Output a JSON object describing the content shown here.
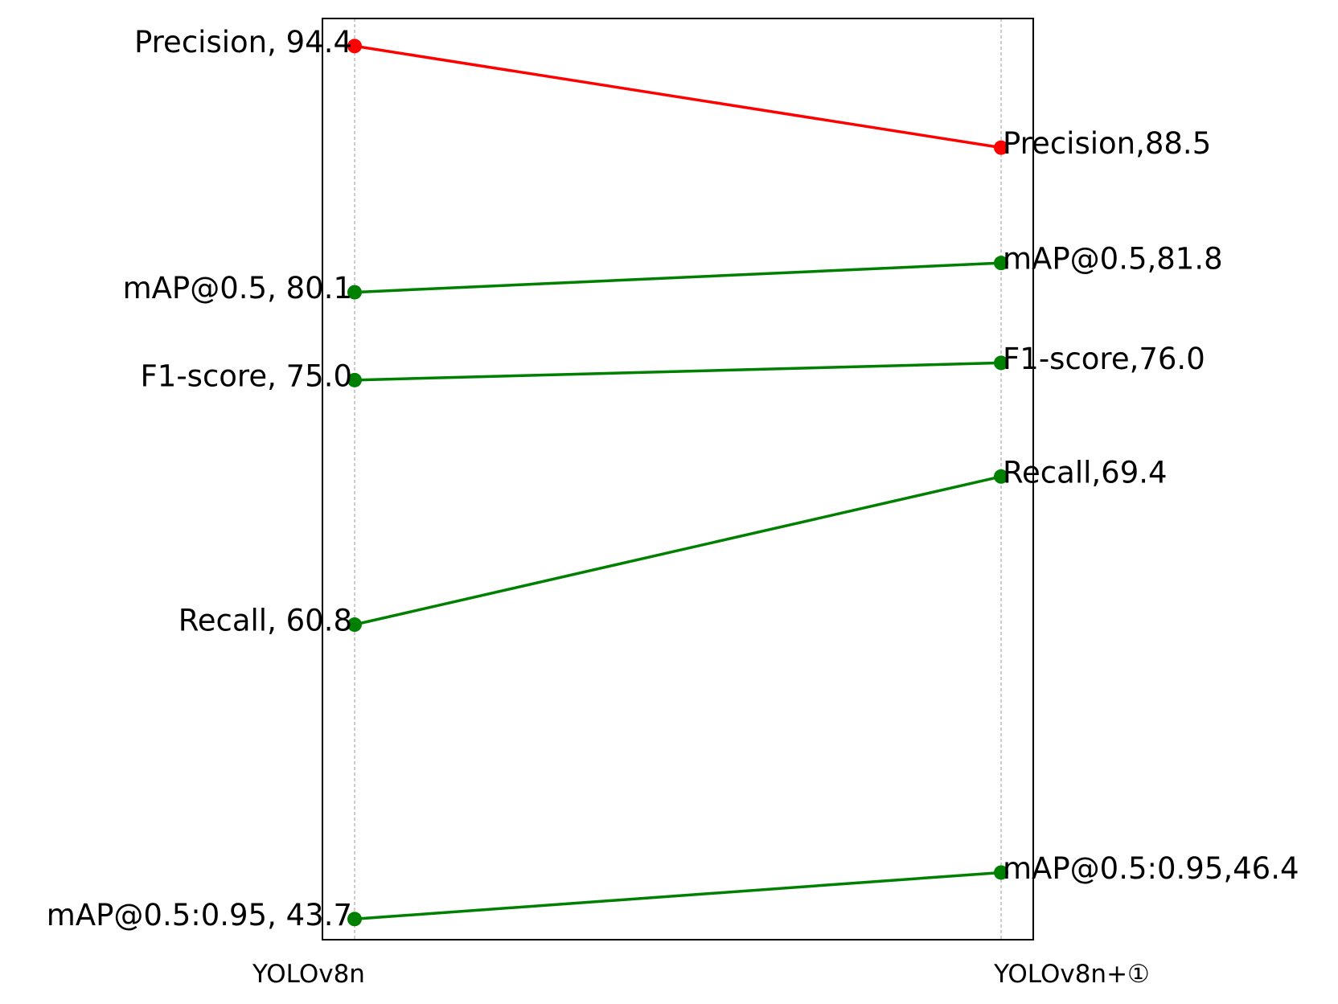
{
  "chart_data": {
    "type": "slope",
    "title": "",
    "xlabel": "",
    "ylabel": "",
    "categories": [
      "YOLOv8n",
      "YOLOv8n+①"
    ],
    "ylim": [
      42.5,
      96.0
    ],
    "grid": false,
    "legend": "none",
    "series": [
      {
        "name": "Precision",
        "values": [
          94.4,
          88.5
        ],
        "color": "#ff0000",
        "labels": [
          "Precision, 94.4",
          "Precision,88.5"
        ]
      },
      {
        "name": "mAP@0.5",
        "values": [
          80.1,
          81.8
        ],
        "color": "#008000",
        "labels": [
          "mAP@0.5, 80.1",
          "mAP@0.5,81.8"
        ]
      },
      {
        "name": "F1-score",
        "values": [
          75.0,
          76.0
        ],
        "color": "#008000",
        "labels": [
          "F1-score, 75.0",
          "F1-score,76.0"
        ]
      },
      {
        "name": "Recall",
        "values": [
          60.8,
          69.4
        ],
        "color": "#008000",
        "labels": [
          "Recall, 60.8",
          "Recall,69.4"
        ]
      },
      {
        "name": "mAP@0.5:0.95",
        "values": [
          43.7,
          46.4
        ],
        "color": "#008000",
        "labels": [
          "mAP@0.5:0.95, 43.7",
          "mAP@0.5:0.95,46.4"
        ]
      }
    ]
  }
}
